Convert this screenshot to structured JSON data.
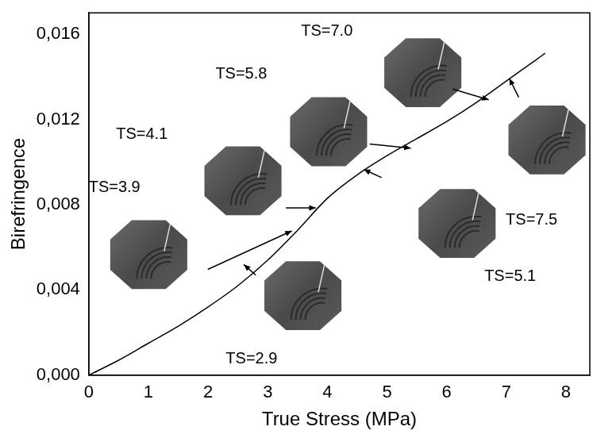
{
  "chart_data": {
    "type": "line",
    "x_label": "True Stress (MPa)",
    "y_label": "Birefringence",
    "x": [
      0,
      0.5,
      1,
      1.5,
      2,
      2.5,
      3,
      3.5,
      4,
      4.5,
      5,
      5.5,
      6,
      6.5,
      7,
      7.5,
      7.65
    ],
    "values": [
      0,
      0.0007,
      0.0015,
      0.0023,
      0.0032,
      0.0042,
      0.0054,
      0.0068,
      0.0083,
      0.0094,
      0.0103,
      0.0111,
      0.0119,
      0.0128,
      0.0138,
      0.0148,
      0.0151
    ],
    "color": "#000000",
    "xlim": [
      0,
      8.4
    ],
    "ylim": [
      0,
      0.017
    ],
    "xticks": [
      0,
      1,
      2,
      3,
      4,
      5,
      6,
      7,
      8
    ],
    "yticks": [
      {
        "value": 0,
        "label": "0,000"
      },
      {
        "value": 0.004,
        "label": "0,004"
      },
      {
        "value": 0.008,
        "label": "0,008"
      },
      {
        "value": 0.012,
        "label": "0,012"
      },
      {
        "value": 0.016,
        "label": "0,016"
      }
    ],
    "grid": false,
    "annotations": [
      "TS=2.9",
      "TS=3.9",
      "TS=4.1",
      "TS=5.1",
      "TS=5.8",
      "TS=7.0",
      "TS=7.5"
    ]
  }
}
